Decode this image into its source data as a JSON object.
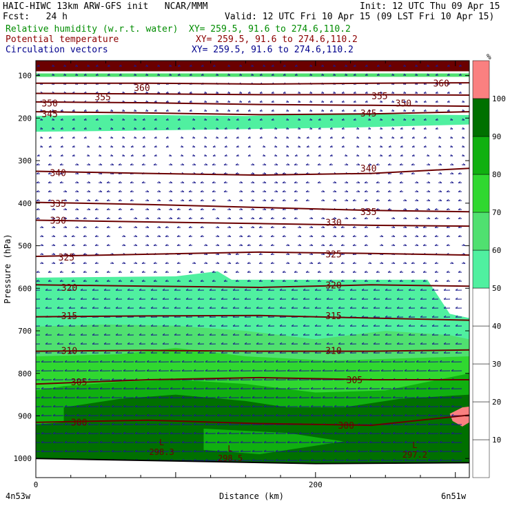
{
  "header": {
    "model_line": "HAIC-HIWC 13km ARW-GFS init   NCAR/MMM",
    "init_line": "Init: 12 UTC Thu 09 Apr 15",
    "fcst_line": "Fcst:   24 h",
    "valid_line": "Valid: 12 UTC Fri 10 Apr 15 (09 LST Fri 10 Apr 15)",
    "rh_title": "Relative humidity (w.r.t. water)",
    "rh_xy": "XY= 259.5, 91.6 to 274.6,110.2",
    "theta_title": "Potential temperature",
    "theta_xy": "XY= 259.5, 91.6 to 274.6,110.2",
    "vec_title": "Circulation vectors",
    "vec_xy": "XY= 259.5, 91.6 to 274.6,110.2"
  },
  "colors": {
    "rh_text": "#008c00",
    "theta_text": "#8c0000",
    "vec_text": "#00008c",
    "theta_line": "#6b0000",
    "vector": "#1a1a8c",
    "top_band": "#6b0000"
  },
  "chart_data": {
    "type": "heatmap",
    "ylabel": "Pressure (hPa)",
    "xlabel": "Distance (km)",
    "x_start_label": "4n53w",
    "x_end_label": "6n51w",
    "xlim": [
      0,
      310
    ],
    "x_ticks": [
      0,
      200
    ],
    "ylim": [
      1045,
      65
    ],
    "y_ticks": [
      100,
      200,
      300,
      400,
      500,
      600,
      700,
      800,
      900,
      1000
    ],
    "colorbar": {
      "unit": "%",
      "levels": [
        10,
        20,
        30,
        40,
        50,
        60,
        70,
        80,
        90,
        100
      ],
      "colors": [
        "#ffffff",
        "#ffffff",
        "#ffffff",
        "#ffffff",
        "#ffffff",
        "#50f0a0",
        "#50e070",
        "#30d830",
        "#10b010",
        "#007000",
        "#fa8080"
      ]
    },
    "rh_regions": [
      {
        "rh": 100,
        "points": [
          [
            0,
            65
          ],
          [
            310,
            65
          ],
          [
            310,
            90
          ],
          [
            0,
            90
          ]
        ]
      },
      {
        "rh": 60,
        "points": [
          [
            0,
            95
          ],
          [
            310,
            95
          ],
          [
            310,
            103
          ],
          [
            0,
            103
          ]
        ]
      },
      {
        "rh": 50,
        "points": [
          [
            0,
            195
          ],
          [
            60,
            192
          ],
          [
            150,
            195
          ],
          [
            230,
            190
          ],
          [
            310,
            193
          ],
          [
            310,
            215
          ],
          [
            230,
            222
          ],
          [
            150,
            226
          ],
          [
            60,
            230
          ],
          [
            0,
            232
          ]
        ]
      },
      {
        "rh": 50,
        "points": [
          [
            0,
            575
          ],
          [
            100,
            572
          ],
          [
            130,
            560
          ],
          [
            140,
            580
          ],
          [
            280,
            580
          ],
          [
            296,
            660
          ],
          [
            310,
            670
          ],
          [
            310,
            1045
          ],
          [
            0,
            1045
          ]
        ]
      },
      {
        "rh": 60,
        "points": [
          [
            0,
            690
          ],
          [
            50,
            685
          ],
          [
            100,
            688
          ],
          [
            150,
            700
          ],
          [
            200,
            720
          ],
          [
            250,
            700
          ],
          [
            296,
            710
          ],
          [
            310,
            720
          ],
          [
            310,
            1045
          ],
          [
            0,
            1045
          ]
        ]
      },
      {
        "rh": 70,
        "points": [
          [
            0,
            760
          ],
          [
            60,
            755
          ],
          [
            100,
            740
          ],
          [
            150,
            760
          ],
          [
            210,
            770
          ],
          [
            260,
            765
          ],
          [
            310,
            760
          ],
          [
            310,
            1045
          ],
          [
            0,
            1045
          ]
        ]
      },
      {
        "rh": 80,
        "points": [
          [
            0,
            840
          ],
          [
            20,
            830
          ],
          [
            60,
            820
          ],
          [
            100,
            815
          ],
          [
            150,
            825
          ],
          [
            200,
            845
          ],
          [
            250,
            840
          ],
          [
            310,
            800
          ],
          [
            310,
            1045
          ],
          [
            0,
            1045
          ]
        ]
      },
      {
        "rh": 90,
        "points": [
          [
            20,
            880
          ],
          [
            60,
            860
          ],
          [
            100,
            850
          ],
          [
            150,
            865
          ],
          [
            180,
            880
          ],
          [
            220,
            880
          ],
          [
            260,
            860
          ],
          [
            310,
            850
          ],
          [
            310,
            1010
          ],
          [
            0,
            1010
          ],
          [
            0,
            920
          ],
          [
            20,
            915
          ]
        ]
      },
      {
        "rh": 80,
        "points": [
          [
            120,
            930
          ],
          [
            180,
            940
          ],
          [
            220,
            960
          ],
          [
            160,
            990
          ],
          [
            120,
            980
          ]
        ]
      },
      {
        "rh": 100,
        "points": [
          [
            296,
            895
          ],
          [
            305,
            880
          ],
          [
            310,
            878
          ],
          [
            310,
            915
          ],
          [
            305,
            925
          ],
          [
            298,
            912
          ]
        ]
      }
    ],
    "isentropes": [
      {
        "theta": 360,
        "pts": [
          [
            0,
            118
          ],
          [
            80,
            118
          ],
          [
            160,
            120
          ],
          [
            240,
            118
          ],
          [
            310,
            117
          ]
        ],
        "labels": [
          [
            68,
            128
          ],
          [
            282,
            118
          ]
        ]
      },
      {
        "theta": 355,
        "pts": [
          [
            0,
            142
          ],
          [
            80,
            143
          ],
          [
            160,
            145
          ],
          [
            240,
            145
          ],
          [
            310,
            146
          ]
        ],
        "labels": [
          [
            40,
            150
          ],
          [
            238,
            148
          ]
        ]
      },
      {
        "theta": 350,
        "pts": [
          [
            0,
            162
          ],
          [
            80,
            164
          ],
          [
            160,
            168
          ],
          [
            240,
            170
          ],
          [
            310,
            172
          ]
        ],
        "labels": [
          [
            2,
            165
          ],
          [
            255,
            165
          ]
        ]
      },
      {
        "theta": 345,
        "pts": [
          [
            0,
            185
          ],
          [
            80,
            188
          ],
          [
            160,
            192
          ],
          [
            240,
            190
          ],
          [
            310,
            185
          ]
        ],
        "labels": [
          [
            2,
            190
          ],
          [
            230,
            188
          ]
        ]
      },
      {
        "theta": 340,
        "pts": [
          [
            0,
            325
          ],
          [
            80,
            330
          ],
          [
            160,
            334
          ],
          [
            240,
            330
          ],
          [
            310,
            318
          ]
        ],
        "labels": [
          [
            8,
            328
          ],
          [
            230,
            318
          ]
        ]
      },
      {
        "theta": 335,
        "pts": [
          [
            0,
            398
          ],
          [
            80,
            403
          ],
          [
            160,
            410
          ],
          [
            240,
            417
          ],
          [
            310,
            420
          ]
        ],
        "labels": [
          [
            8,
            400
          ],
          [
            230,
            420
          ]
        ]
      },
      {
        "theta": 330,
        "pts": [
          [
            0,
            440
          ],
          [
            80,
            444
          ],
          [
            160,
            448
          ],
          [
            240,
            452
          ],
          [
            310,
            454
          ]
        ],
        "labels": [
          [
            8,
            440
          ],
          [
            205,
            445
          ]
        ]
      },
      {
        "theta": 325,
        "pts": [
          [
            0,
            525
          ],
          [
            80,
            520
          ],
          [
            160,
            515
          ],
          [
            240,
            518
          ],
          [
            310,
            522
          ]
        ],
        "labels": [
          [
            14,
            527
          ],
          [
            205,
            519
          ]
        ]
      },
      {
        "theta": 320,
        "pts": [
          [
            0,
            592
          ],
          [
            80,
            595
          ],
          [
            160,
            598
          ],
          [
            240,
            592
          ],
          [
            310,
            595
          ]
        ],
        "labels": [
          [
            16,
            598
          ],
          [
            205,
            592
          ]
        ]
      },
      {
        "theta": 315,
        "pts": [
          [
            0,
            667
          ],
          [
            80,
            665
          ],
          [
            160,
            664
          ],
          [
            240,
            670
          ],
          [
            310,
            675
          ]
        ],
        "labels": [
          [
            16,
            664
          ],
          [
            205,
            664
          ]
        ]
      },
      {
        "theta": 310,
        "pts": [
          [
            0,
            748
          ],
          [
            80,
            746
          ],
          [
            160,
            748
          ],
          [
            240,
            748
          ],
          [
            310,
            745
          ]
        ],
        "labels": [
          [
            16,
            746
          ],
          [
            205,
            746
          ]
        ]
      },
      {
        "theta": 305,
        "pts": [
          [
            0,
            825
          ],
          [
            80,
            815
          ],
          [
            160,
            810
          ],
          [
            240,
            815
          ],
          [
            310,
            815
          ]
        ],
        "labels": [
          [
            23,
            820
          ],
          [
            220,
            815
          ]
        ]
      },
      {
        "theta": 300,
        "pts": [
          [
            0,
            915
          ],
          [
            80,
            910
          ],
          [
            160,
            918
          ],
          [
            240,
            922
          ],
          [
            310,
            898
          ]
        ],
        "labels": [
          [
            23,
            915
          ],
          [
            214,
            922
          ]
        ]
      }
    ],
    "extremes": [
      {
        "label": "L",
        "value": "298.3",
        "x": 90,
        "p": 975
      },
      {
        "label": "L",
        "value": "298.5",
        "x": 139,
        "p": 990
      },
      {
        "label": "L",
        "value": "297.2",
        "x": 271,
        "p": 982
      }
    ]
  }
}
